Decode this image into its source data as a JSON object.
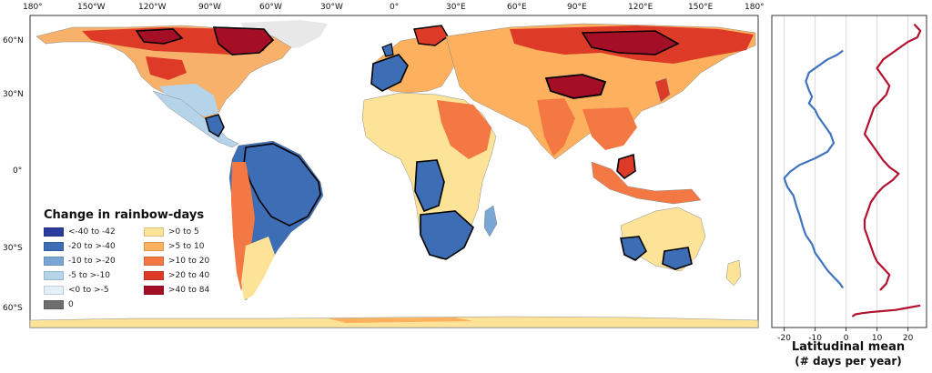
{
  "map": {
    "top_ticks": [
      "180°",
      "150°W",
      "120°W",
      "90°W",
      "60°W",
      "30°W",
      "0°",
      "30°E",
      "60°E",
      "90°E",
      "120°E",
      "150°E",
      "180°"
    ],
    "lat_ticks": [
      "60°N",
      "30°N",
      "0°",
      "30°S",
      "60°S"
    ],
    "colors": {
      "ocean": "#ffffff",
      "border": "#8a8a8a",
      "outline": "#000000"
    }
  },
  "legend": {
    "title": "Change in rainbow-days",
    "items": [
      {
        "label": "<-40 to -42",
        "color": "#2b3c9c"
      },
      {
        "label": "-20 to >-40",
        "color": "#3d6db4"
      },
      {
        "label": "-10 to >-20",
        "color": "#7aa6d3"
      },
      {
        "label": "-5 to >-10",
        "color": "#b5d4ea"
      },
      {
        "label": "<0 to >-5",
        "color": "#e3f0f8"
      },
      {
        "label": "0",
        "color": "#6e6e6e"
      },
      {
        "label": ">0 to 5",
        "color": "#fde397"
      },
      {
        "label": ">5 to 10",
        "color": "#fdb15e"
      },
      {
        "label": ">10 to 20",
        "color": "#f47843"
      },
      {
        "label": ">20 to 40",
        "color": "#dd3b27"
      },
      {
        "label": ">40 to 84",
        "color": "#a50f26"
      }
    ]
  },
  "chart_data": {
    "type": "line",
    "xlabel": "Latitudinal mean\n(# days per year)",
    "xlabel_lines": [
      "Latitudinal mean",
      "(# days per year)"
    ],
    "xticks": [
      -20,
      -10,
      0,
      10,
      20
    ],
    "xlim": [
      -24,
      26
    ],
    "ylim": [
      -70,
      72
    ],
    "grid": true,
    "series": [
      {
        "color": "#3f74c0",
        "points": [
          [
            -1,
            56
          ],
          [
            -3,
            54
          ],
          [
            -6,
            52
          ],
          [
            -9,
            49
          ],
          [
            -12,
            46
          ],
          [
            -13,
            42
          ],
          [
            -12,
            38
          ],
          [
            -11,
            35
          ],
          [
            -12,
            32
          ],
          [
            -10,
            29
          ],
          [
            -9,
            26
          ],
          [
            -7,
            22
          ],
          [
            -5,
            18
          ],
          [
            -4,
            14
          ],
          [
            -6,
            10
          ],
          [
            -10,
            7
          ],
          [
            -15,
            4
          ],
          [
            -18,
            1
          ],
          [
            -20,
            -2
          ],
          [
            -19,
            -6
          ],
          [
            -17,
            -10
          ],
          [
            -16,
            -15
          ],
          [
            -15,
            -19
          ],
          [
            -14,
            -24
          ],
          [
            -13,
            -28
          ],
          [
            -11,
            -32
          ],
          [
            -10,
            -36
          ],
          [
            -8,
            -40
          ],
          [
            -6,
            -44
          ],
          [
            -4,
            -47
          ],
          [
            -2,
            -50
          ],
          [
            -1,
            -52
          ]
        ]
      },
      {
        "color": "#b3112e",
        "points": [
          [
            22,
            68
          ],
          [
            24,
            65
          ],
          [
            23,
            62
          ],
          [
            20,
            60
          ],
          [
            16,
            56
          ],
          [
            12,
            52
          ],
          [
            10,
            48
          ],
          [
            12,
            44
          ],
          [
            14,
            40
          ],
          [
            13,
            36
          ],
          [
            11,
            33
          ],
          [
            9,
            30
          ],
          [
            8,
            26
          ],
          [
            7,
            22
          ],
          [
            6,
            18
          ],
          [
            8,
            14
          ],
          [
            10,
            10
          ],
          [
            12,
            6
          ],
          [
            14,
            3
          ],
          [
            17,
            0
          ],
          [
            15,
            -3
          ],
          [
            12,
            -6
          ],
          [
            10,
            -9
          ],
          [
            8,
            -13
          ],
          [
            7,
            -17
          ],
          [
            6,
            -21
          ],
          [
            6,
            -25
          ],
          [
            7,
            -29
          ],
          [
            8,
            -33
          ],
          [
            9,
            -37
          ],
          [
            10,
            -40
          ],
          [
            12,
            -43
          ],
          [
            14,
            -46
          ],
          [
            13,
            -50
          ],
          [
            11,
            -53
          ]
        ]
      },
      {
        "color": "#b3112e",
        "points": [
          [
            24,
            -60
          ],
          [
            20,
            -61
          ],
          [
            16,
            -62
          ],
          [
            12,
            -62.5
          ],
          [
            8,
            -63
          ],
          [
            5,
            -63.5
          ],
          [
            3,
            -64
          ],
          [
            2,
            -65
          ]
        ]
      }
    ]
  }
}
